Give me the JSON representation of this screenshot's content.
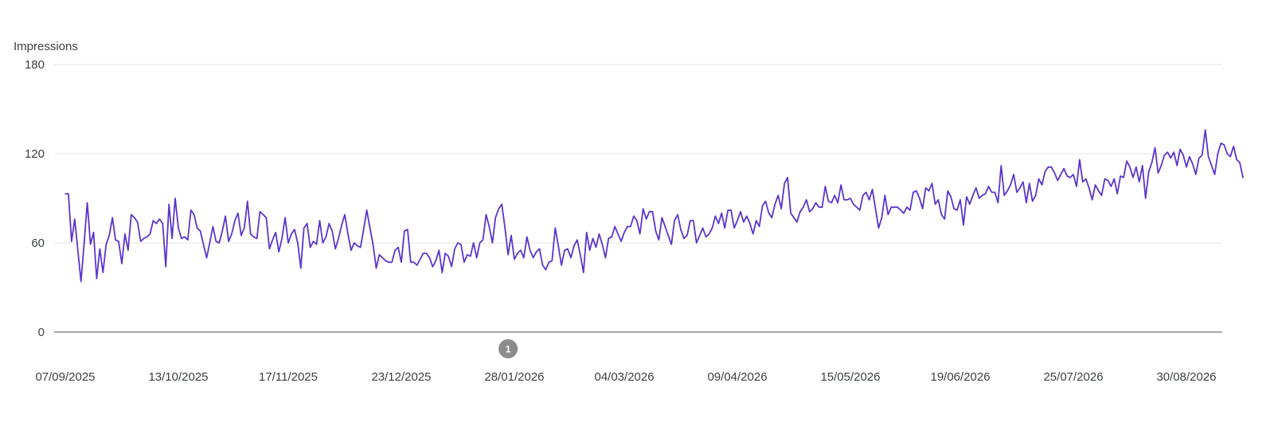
{
  "colors": {
    "series": "#5c35cc",
    "grid": "#e6e6e6",
    "baseline": "#8a8a8a",
    "text": "#3c4043",
    "annotation": "#8c8c8c"
  },
  "chart_data": {
    "type": "line",
    "title": "",
    "xlabel": "",
    "ylabel": "Impressions",
    "ylim": [
      0,
      180
    ],
    "y_ticks": [
      "0",
      "60",
      "120",
      "180"
    ],
    "x_ticks": [
      "07/09/2025",
      "13/10/2025",
      "17/11/2025",
      "23/12/2025",
      "28/01/2026",
      "04/03/2026",
      "09/04/2026",
      "15/05/2026",
      "19/06/2026",
      "25/07/2026",
      "30/08/2026"
    ],
    "x_range": [
      "07/09/2025",
      "02/09/2026"
    ],
    "grid": true,
    "legend": "none",
    "annotations": [
      {
        "label": "1",
        "date": "26/01/2026"
      }
    ],
    "series": [
      {
        "x_start": "07/09/2025",
        "x_step_days": 1,
        "values": [
          93,
          93,
          61,
          76,
          55,
          34,
          60,
          87,
          59,
          67,
          36,
          56,
          40,
          59,
          65,
          77,
          62,
          61,
          46,
          66,
          55,
          79,
          77,
          74,
          61,
          63,
          64,
          66,
          75,
          73,
          76,
          73,
          44,
          86,
          63,
          90,
          70,
          63,
          64,
          62,
          82,
          79,
          70,
          68,
          59,
          50,
          60,
          71,
          61,
          60,
          68,
          78,
          61,
          66,
          75,
          80,
          65,
          70,
          88,
          66,
          64,
          63,
          81,
          79,
          77,
          56,
          62,
          67,
          54,
          63,
          77,
          60,
          66,
          69,
          60,
          43,
          70,
          73,
          57,
          61,
          59,
          75,
          60,
          64,
          73,
          68,
          56,
          63,
          72,
          79,
          66,
          55,
          60,
          58,
          57,
          69,
          82,
          70,
          59,
          43,
          52,
          50,
          48,
          47,
          47,
          55,
          57,
          47,
          68,
          69,
          47,
          47,
          45,
          49,
          53,
          53,
          50,
          44,
          48,
          55,
          40,
          53,
          51,
          44,
          56,
          60,
          59,
          47,
          52,
          51,
          60,
          50,
          60,
          62,
          79,
          71,
          60,
          77,
          83,
          86,
          70,
          52,
          65,
          49,
          53,
          55,
          50,
          64,
          55,
          50,
          54,
          56,
          45,
          42,
          47,
          48,
          70,
          58,
          45,
          55,
          56,
          50,
          58,
          62,
          52,
          40,
          67,
          55,
          63,
          57,
          66,
          59,
          50,
          63,
          64,
          71,
          66,
          61,
          67,
          71,
          71,
          78,
          75,
          66,
          83,
          76,
          81,
          81,
          68,
          62,
          77,
          71,
          65,
          59,
          75,
          79,
          69,
          63,
          65,
          75,
          75,
          60,
          65,
          70,
          64,
          66,
          70,
          78,
          73,
          80,
          70,
          82,
          82,
          70,
          75,
          81,
          74,
          78,
          73,
          66,
          75,
          71,
          85,
          88,
          80,
          77,
          86,
          92,
          83,
          100,
          104,
          80,
          77,
          74,
          81,
          84,
          89,
          81,
          83,
          87,
          84,
          84,
          98,
          88,
          87,
          92,
          87,
          99,
          89,
          89,
          90,
          86,
          84,
          82,
          92,
          94,
          89,
          96,
          83,
          70,
          77,
          92,
          79,
          84,
          84,
          84,
          82,
          80,
          84,
          82,
          94,
          95,
          90,
          83,
          97,
          95,
          100,
          86,
          89,
          79,
          76,
          95,
          91,
          83,
          82,
          89,
          72,
          91,
          86,
          92,
          97,
          90,
          92,
          93,
          98,
          94,
          94,
          87,
          112,
          92,
          95,
          99,
          106,
          94,
          97,
          101,
          87,
          100,
          88,
          92,
          103,
          99,
          108,
          111,
          111,
          107,
          102,
          106,
          110,
          105,
          104,
          106,
          98,
          116,
          101,
          103,
          97,
          89,
          99,
          95,
          92,
          103,
          102,
          98,
          103,
          93,
          105,
          104,
          115,
          111,
          104,
          111,
          101,
          112,
          90,
          108,
          114,
          124,
          107,
          112,
          119,
          121,
          117,
          121,
          112,
          123,
          119,
          111,
          118,
          113,
          106,
          117,
          119,
          136,
          118,
          112,
          106,
          120,
          127,
          126,
          120,
          118,
          125,
          116,
          114,
          104
        ]
      }
    ]
  }
}
